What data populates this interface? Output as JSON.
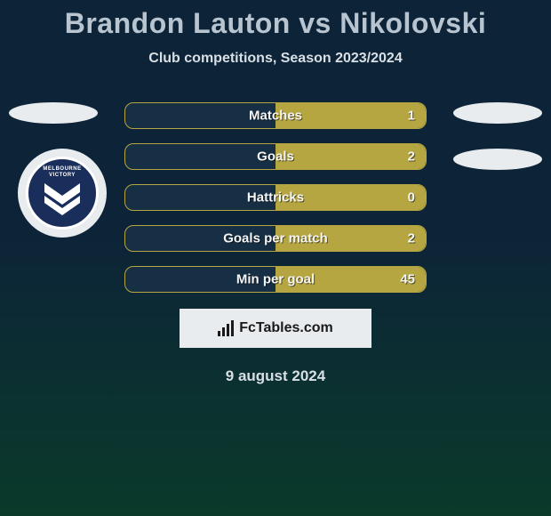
{
  "title": "Brandon Lauton vs Nikolovski",
  "subtitle": "Club competitions, Season 2023/2024",
  "date": "9 august 2024",
  "footer_brand": "FcTables.com",
  "club_badge": {
    "line1": "MELBOURNE",
    "line2": "VICTORY"
  },
  "colors": {
    "bar_fill": "#b5a642",
    "bar_border": "#b5a642",
    "bar_bg": "#172f44",
    "text_light": "#f5f5f5",
    "title_color": "#b8c5d0",
    "subtitle_color": "#d8dfe5",
    "ellipse": "#e8ecef",
    "badge_bg": "#1a2e5c"
  },
  "stats": [
    {
      "label": "Matches",
      "value": "1",
      "fill_pct": 50
    },
    {
      "label": "Goals",
      "value": "2",
      "fill_pct": 50
    },
    {
      "label": "Hattricks",
      "value": "0",
      "fill_pct": 50
    },
    {
      "label": "Goals per match",
      "value": "2",
      "fill_pct": 50
    },
    {
      "label": "Min per goal",
      "value": "45",
      "fill_pct": 50
    }
  ],
  "footer_logo_bar_heights": [
    6,
    10,
    14,
    18
  ]
}
